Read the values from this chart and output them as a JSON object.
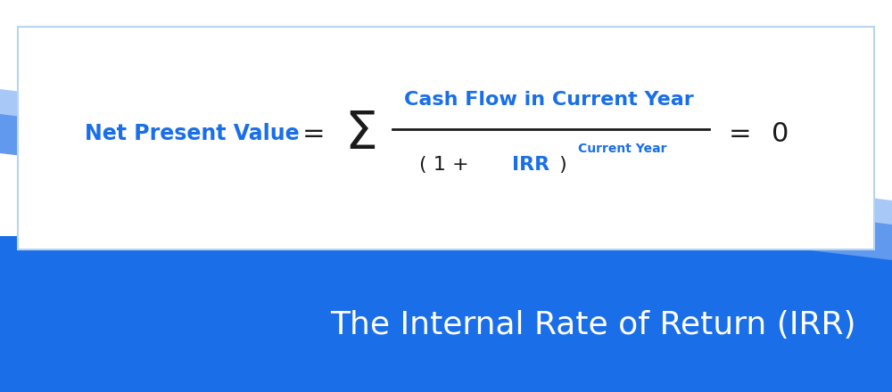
{
  "bg_color": "#ffffff",
  "blue_dark": "#1565e8",
  "blue_mid": "#6099ee",
  "blue_light": "#a8c8f8",
  "blue_banner": "#1a6fe8",
  "title_text": "The Internal Rate of Return (IRR)",
  "title_color": "#ffffff",
  "title_fontsize": 26,
  "formula_blue": "#1a6fe8",
  "formula_black": "#1a1a1a",
  "box_border_color": "#b8d4ee",
  "npv_label": "Net Present Value",
  "equals1": "=",
  "sigma": "Σ",
  "numerator": "Cash Flow in Current Year",
  "denom_left": "( 1 + ",
  "denom_irr": "IRR",
  "denom_right": " )",
  "denom_super": "Current Year",
  "equals2": "=",
  "zero": "0"
}
